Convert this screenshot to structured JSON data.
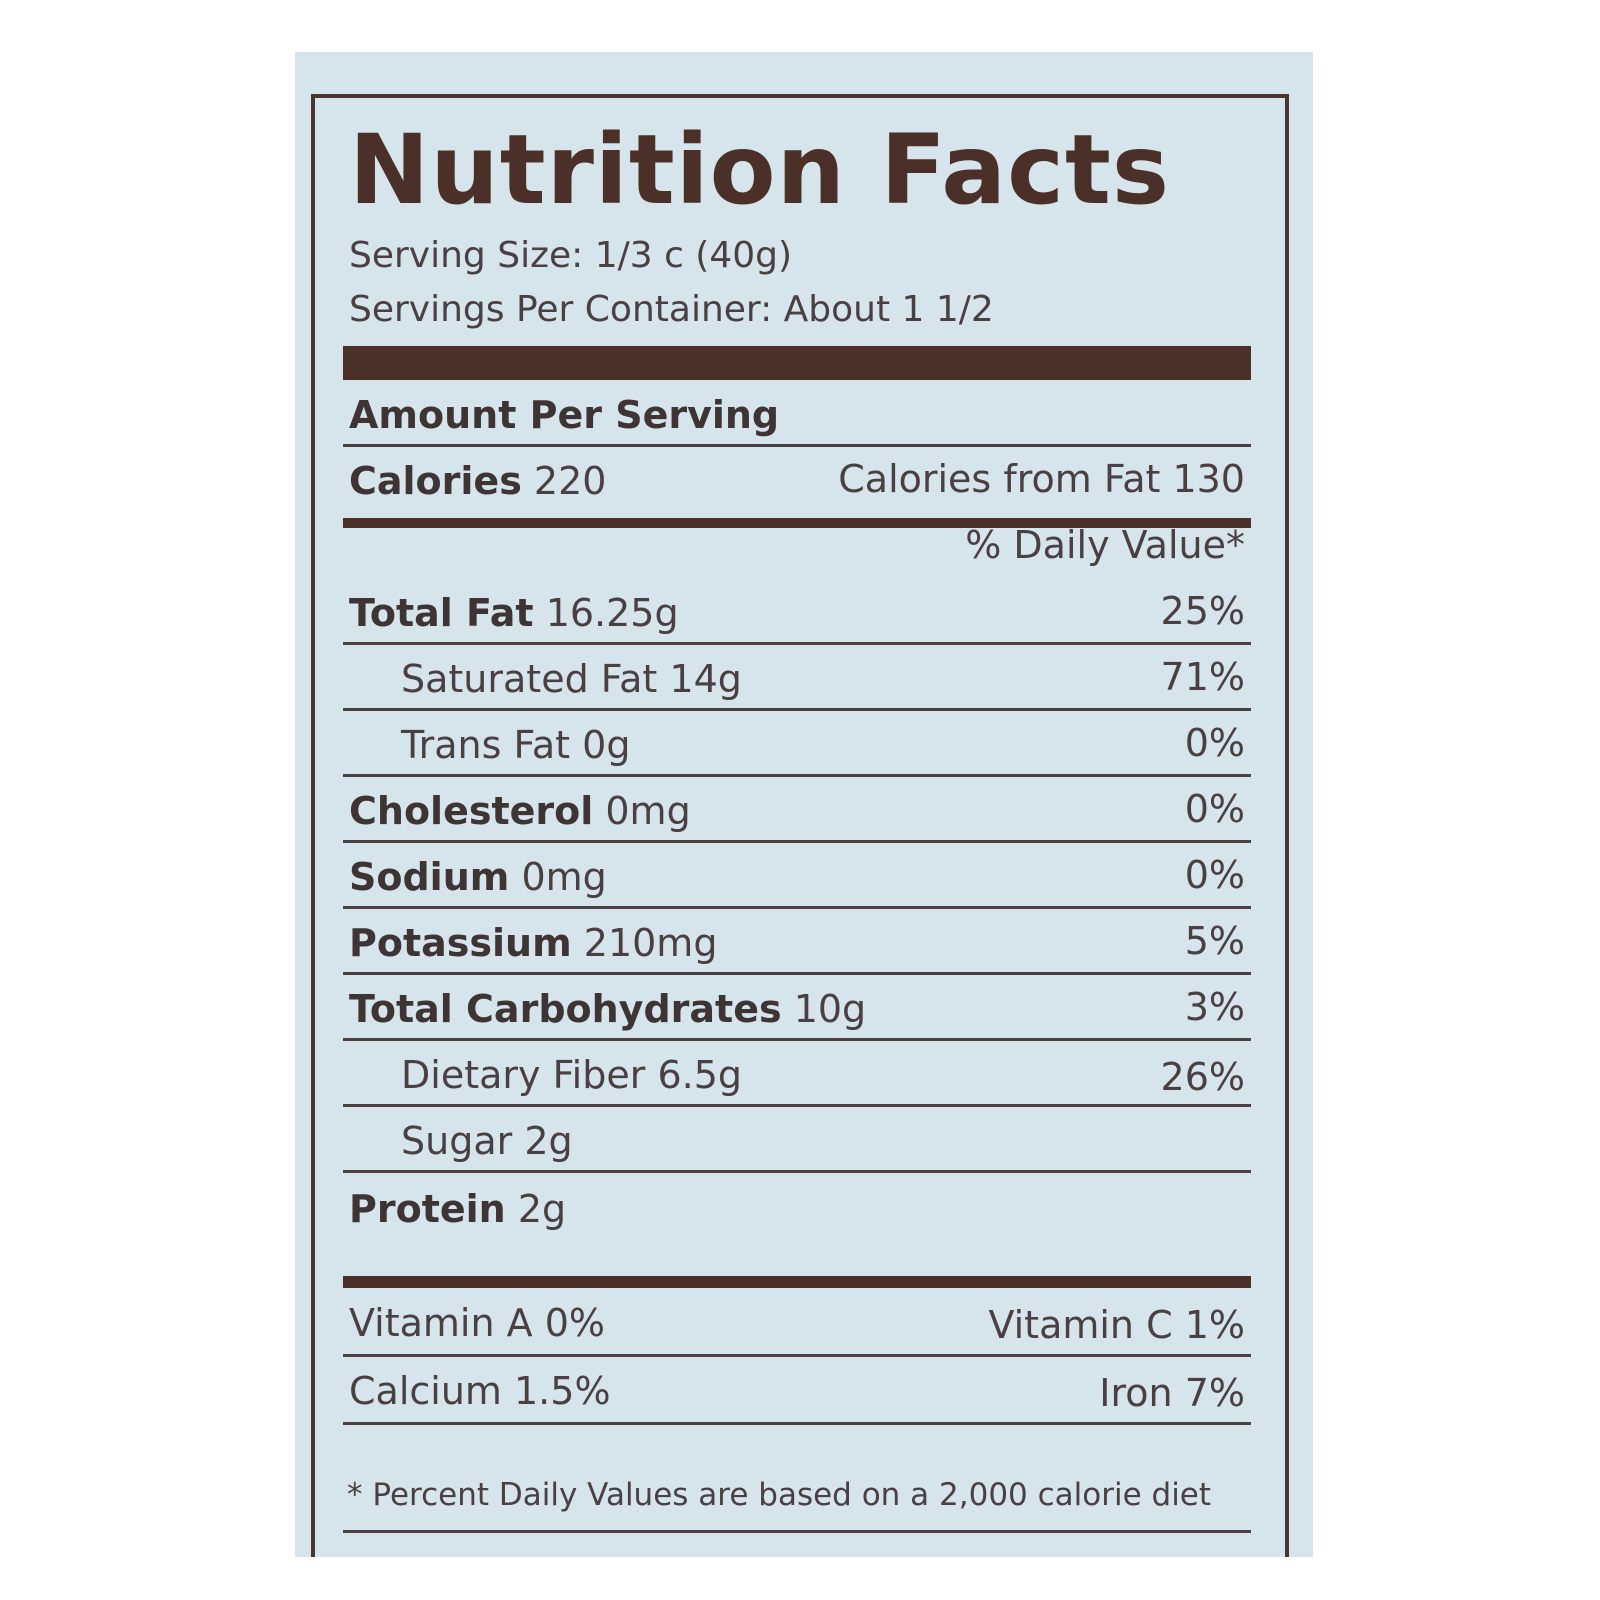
{
  "label": {
    "title": "Nutrition Facts",
    "serving_size": "Serving Size: 1/3 c (40g)",
    "servings_per_container": "Servings Per Container: About 1 1/2",
    "amount_per_serving": "Amount Per Serving",
    "calories_label": "Calories",
    "calories_value": "220",
    "calories_from_fat": "Calories from Fat 130",
    "daily_value_header": "% Daily Value*",
    "nutrients": [
      {
        "name": "Total Fat",
        "amount": "16.25g",
        "dv": "25%"
      },
      {
        "name": "Saturated Fat",
        "amount": "14g",
        "dv": "71%"
      },
      {
        "name": "Trans Fat",
        "amount": "0g",
        "dv": "0%"
      },
      {
        "name": "Cholesterol",
        "amount": "0mg",
        "dv": "0%"
      },
      {
        "name": "Sodium",
        "amount": "0mg",
        "dv": "0%"
      },
      {
        "name": "Potassium",
        "amount": "210mg",
        "dv": "5%"
      },
      {
        "name": "Total Carbohydrates",
        "amount": "10g",
        "dv": "3%"
      },
      {
        "name": "Dietary Fiber",
        "amount": "6.5g",
        "dv": "26%"
      },
      {
        "name": "Sugar",
        "amount": "2g",
        "dv": ""
      },
      {
        "name": "Protein",
        "amount": "2g",
        "dv": ""
      }
    ],
    "vitamins": {
      "vitamin_a": "Vitamin A 0%",
      "vitamin_c": "Vitamin C 1%",
      "calcium": "Calcium 1.5%",
      "iron": "Iron  7%"
    },
    "footnote": "* Percent Daily Values are based on a 2,000 calorie diet"
  }
}
